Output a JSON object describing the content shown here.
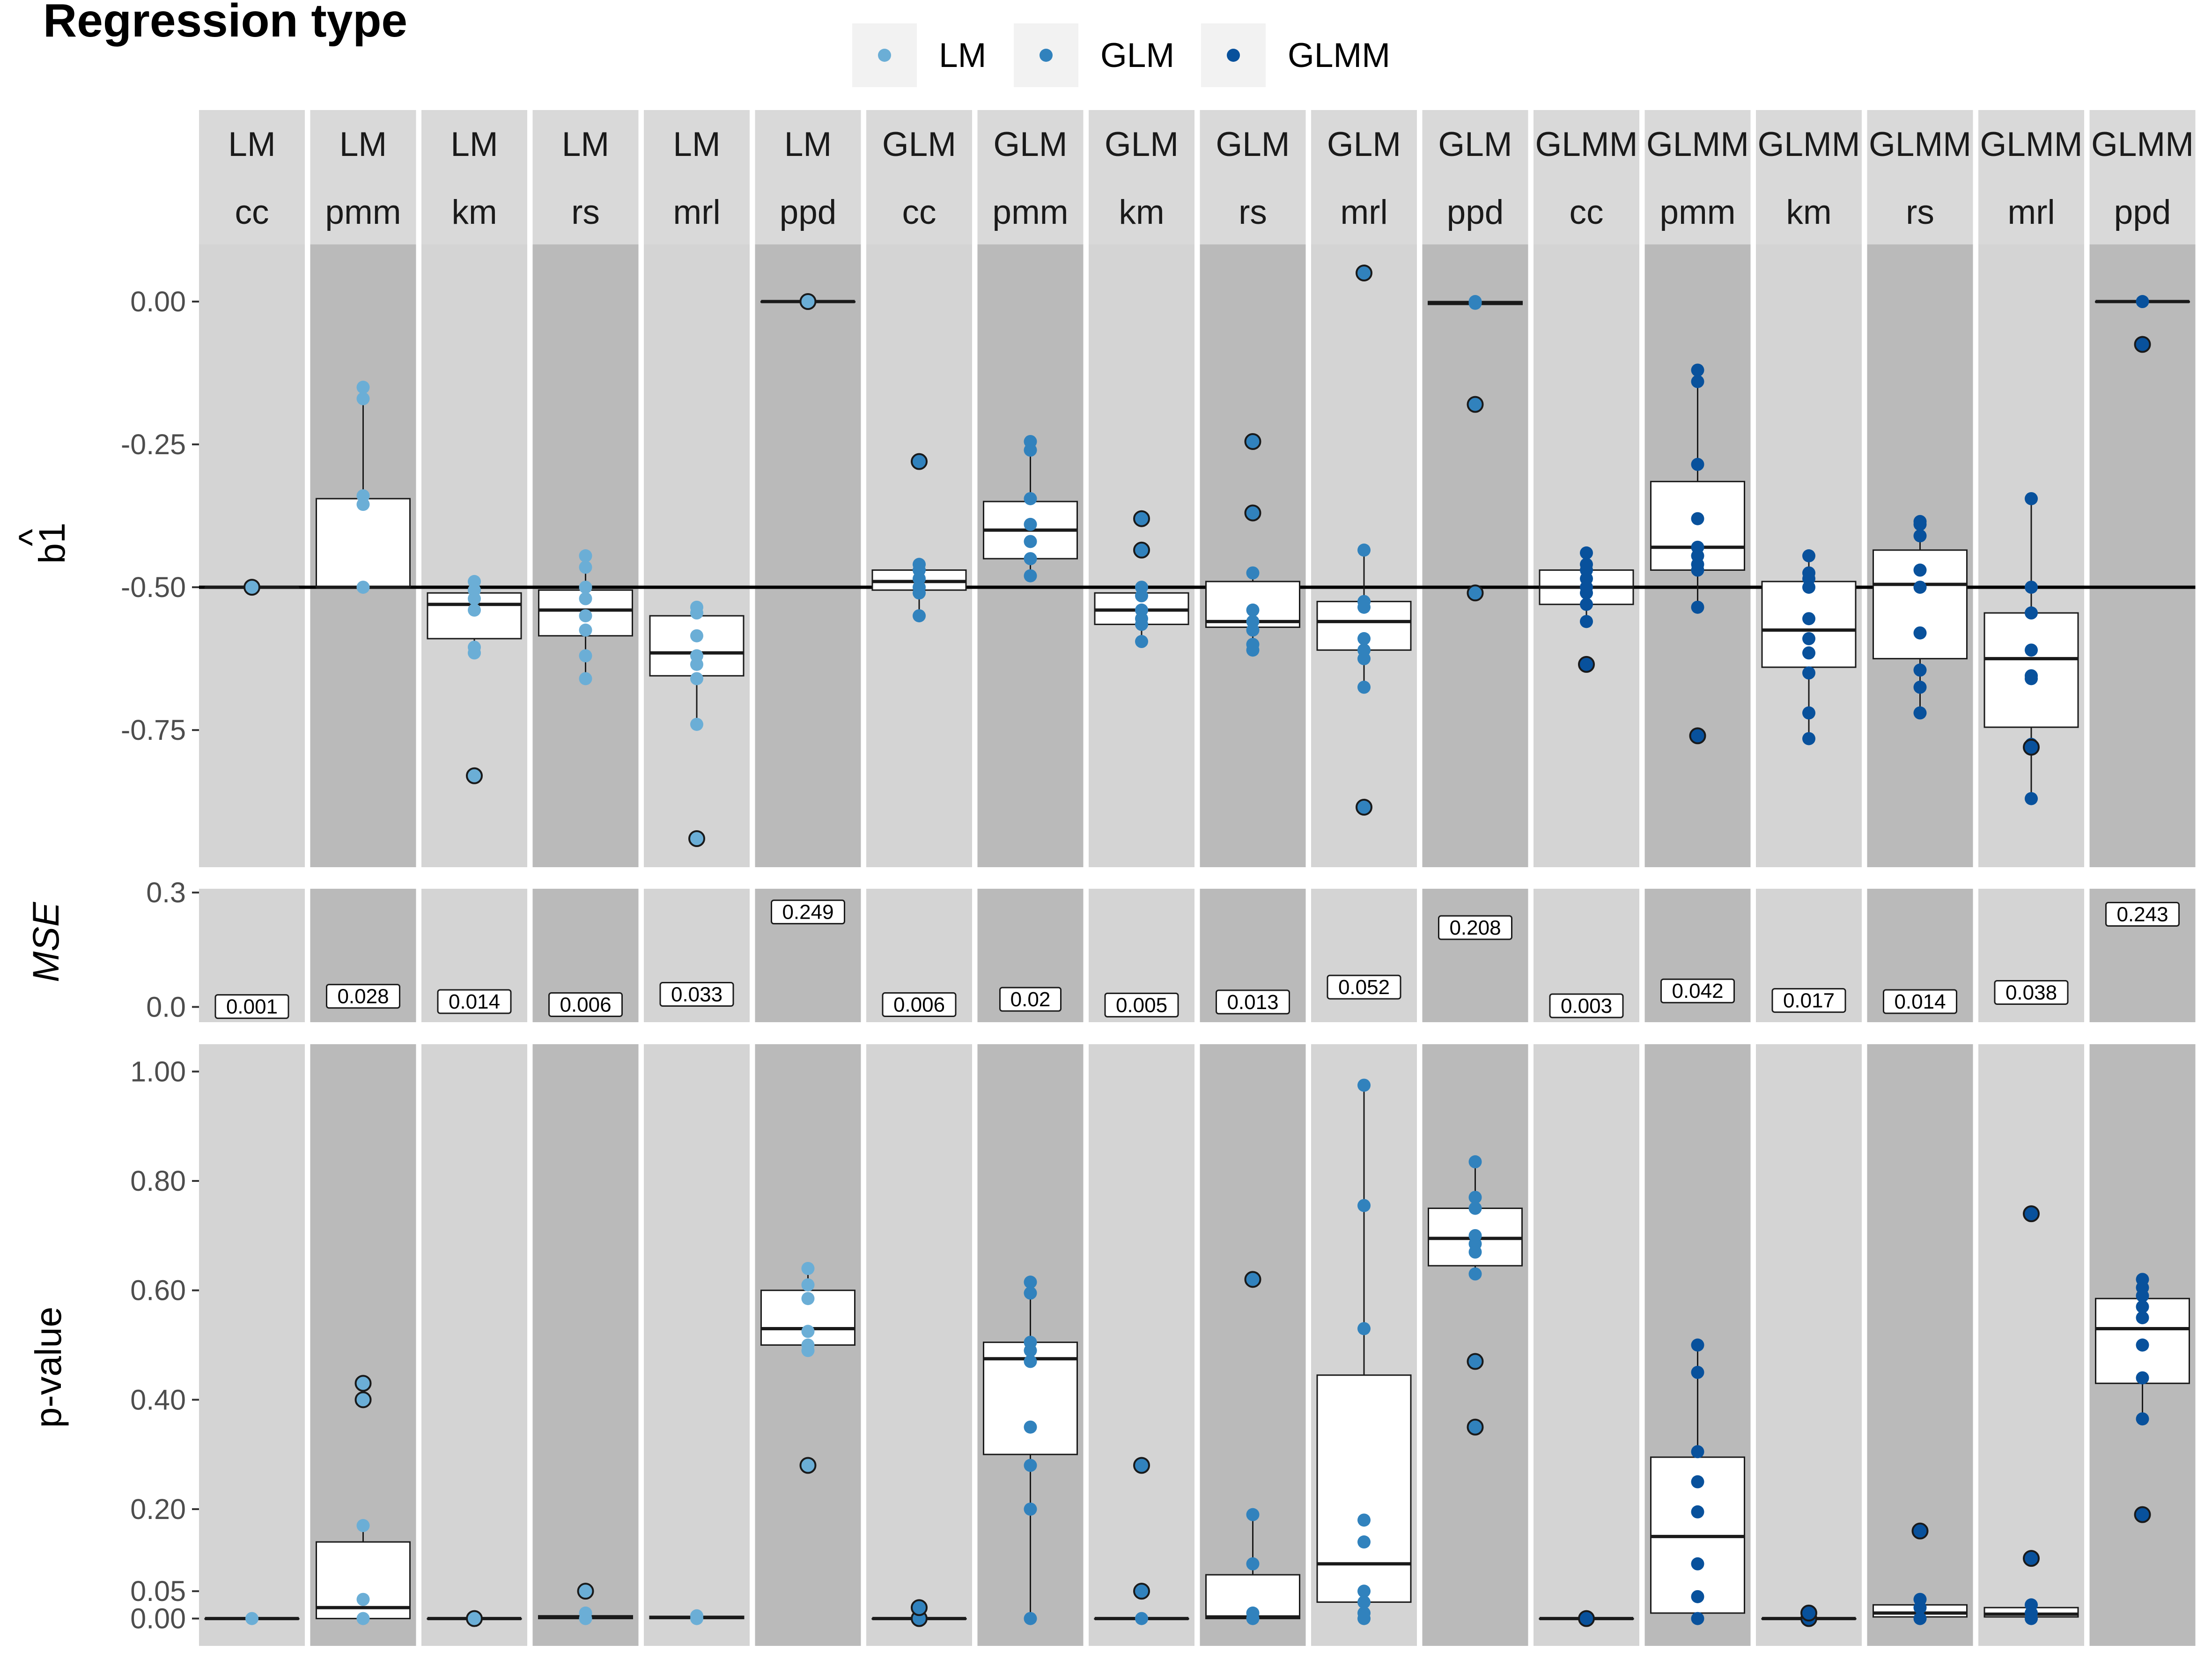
{
  "legend": {
    "title": "Regression type",
    "items": [
      {
        "label": "LM",
        "color": "#6BAED6"
      },
      {
        "label": "GLM",
        "color": "#3182BD"
      },
      {
        "label": "GLMM",
        "color": "#08519C"
      }
    ]
  },
  "colors": {
    "panel_light": "#d4d4d4",
    "panel_dark": "#bababa",
    "strip": "#d9d9d9",
    "box_fill": "#ffffff",
    "outline": "#1a1a1a"
  },
  "facets": [
    {
      "model": "LM",
      "method": "cc"
    },
    {
      "model": "LM",
      "method": "pmm"
    },
    {
      "model": "LM",
      "method": "km"
    },
    {
      "model": "LM",
      "method": "rs"
    },
    {
      "model": "LM",
      "method": "mrl"
    },
    {
      "model": "LM",
      "method": "ppd"
    },
    {
      "model": "GLM",
      "method": "cc"
    },
    {
      "model": "GLM",
      "method": "pmm"
    },
    {
      "model": "GLM",
      "method": "km"
    },
    {
      "model": "GLM",
      "method": "rs"
    },
    {
      "model": "GLM",
      "method": "mrl"
    },
    {
      "model": "GLM",
      "method": "ppd"
    },
    {
      "model": "GLMM",
      "method": "cc"
    },
    {
      "model": "GLMM",
      "method": "pmm"
    },
    {
      "model": "GLMM",
      "method": "km"
    },
    {
      "model": "GLMM",
      "method": "rs"
    },
    {
      "model": "GLMM",
      "method": "mrl"
    },
    {
      "model": "GLMM",
      "method": "ppd"
    }
  ],
  "chart_data": [
    {
      "type": "box",
      "ylabel": "b1",
      "ylabel_accent": "^",
      "ylim": [
        -0.99,
        0.1
      ],
      "yticks": [
        0.0,
        -0.25,
        -0.5,
        -0.75
      ],
      "ytick_labels": [
        "0.00",
        "-0.25",
        "-0.50",
        "-0.75"
      ],
      "reference_line": -0.5,
      "boxes": [
        {
          "q1": -0.5,
          "median": -0.5,
          "q3": -0.5,
          "whisker_low": -0.5,
          "whisker_high": -0.5
        },
        {
          "q1": -0.5,
          "median": -0.5,
          "q3": -0.345,
          "whisker_low": -0.5,
          "whisker_high": -0.15
        },
        {
          "q1": -0.59,
          "median": -0.53,
          "q3": -0.51,
          "whisker_low": -0.62,
          "whisker_high": -0.49
        },
        {
          "q1": -0.585,
          "median": -0.54,
          "q3": -0.505,
          "whisker_low": -0.66,
          "whisker_high": -0.445
        },
        {
          "q1": -0.655,
          "median": -0.615,
          "q3": -0.55,
          "whisker_low": -0.74,
          "whisker_high": -0.535
        },
        {
          "q1": 0.0,
          "median": 0.0,
          "q3": 0.0,
          "whisker_low": 0.0,
          "whisker_high": 0.0
        },
        {
          "q1": -0.505,
          "median": -0.49,
          "q3": -0.47,
          "whisker_low": -0.55,
          "whisker_high": -0.46
        },
        {
          "q1": -0.45,
          "median": -0.4,
          "q3": -0.35,
          "whisker_low": -0.48,
          "whisker_high": -0.245
        },
        {
          "q1": -0.565,
          "median": -0.54,
          "q3": -0.51,
          "whisker_low": -0.595,
          "whisker_high": -0.5
        },
        {
          "q1": -0.57,
          "median": -0.56,
          "q3": -0.49,
          "whisker_low": -0.61,
          "whisker_high": -0.475
        },
        {
          "q1": -0.61,
          "median": -0.56,
          "q3": -0.525,
          "whisker_low": -0.675,
          "whisker_high": -0.435
        },
        {
          "q1": -0.005,
          "median": -0.003,
          "q3": 0.0,
          "whisker_low": -0.005,
          "whisker_high": 0.0
        },
        {
          "q1": -0.53,
          "median": -0.5,
          "q3": -0.47,
          "whisker_low": -0.56,
          "whisker_high": -0.44
        },
        {
          "q1": -0.47,
          "median": -0.43,
          "q3": -0.315,
          "whisker_low": -0.535,
          "whisker_high": -0.12
        },
        {
          "q1": -0.64,
          "median": -0.575,
          "q3": -0.49,
          "whisker_low": -0.765,
          "whisker_high": -0.445
        },
        {
          "q1": -0.625,
          "median": -0.495,
          "q3": -0.435,
          "whisker_low": -0.72,
          "whisker_high": -0.385
        },
        {
          "q1": -0.745,
          "median": -0.625,
          "q3": -0.545,
          "whisker_low": -0.87,
          "whisker_high": -0.345
        },
        {
          "q1": 0.0,
          "median": 0.0,
          "q3": 0.0,
          "whisker_low": 0.0,
          "whisker_high": 0.0
        }
      ],
      "points": [
        [
          -0.5
        ],
        [
          -0.15,
          -0.17,
          -0.34,
          -0.355,
          -0.5
        ],
        [
          -0.49,
          -0.505,
          -0.52,
          -0.54,
          -0.605,
          -0.615
        ],
        [
          -0.445,
          -0.465,
          -0.5,
          -0.52,
          -0.55,
          -0.575,
          -0.62,
          -0.66
        ],
        [
          -0.535,
          -0.545,
          -0.585,
          -0.62,
          -0.635,
          -0.66,
          -0.74
        ],
        [
          0.0
        ],
        [
          -0.46,
          -0.47,
          -0.485,
          -0.5,
          -0.51,
          -0.55
        ],
        [
          -0.245,
          -0.26,
          -0.345,
          -0.39,
          -0.42,
          -0.45,
          -0.48
        ],
        [
          -0.5,
          -0.515,
          -0.54,
          -0.555,
          -0.565,
          -0.595
        ],
        [
          -0.475,
          -0.54,
          -0.56,
          -0.575,
          -0.6,
          -0.61
        ],
        [
          -0.435,
          -0.525,
          -0.535,
          -0.59,
          -0.61,
          -0.625,
          -0.675
        ],
        [
          -0.003,
          0.0
        ],
        [
          -0.44,
          -0.46,
          -0.47,
          -0.485,
          -0.5,
          -0.51,
          -0.53,
          -0.56
        ],
        [
          -0.12,
          -0.14,
          -0.285,
          -0.38,
          -0.43,
          -0.445,
          -0.46,
          -0.47,
          -0.535
        ],
        [
          -0.445,
          -0.475,
          -0.485,
          -0.5,
          -0.555,
          -0.59,
          -0.615,
          -0.65,
          -0.72,
          -0.765
        ],
        [
          -0.385,
          -0.39,
          -0.41,
          -0.47,
          -0.5,
          -0.58,
          -0.645,
          -0.675,
          -0.72
        ],
        [
          -0.345,
          -0.5,
          -0.545,
          -0.61,
          -0.655,
          -0.66,
          -0.775,
          -0.87
        ],
        [
          0.0
        ]
      ],
      "outliers": [
        [
          -0.5
        ],
        [],
        [
          -0.83
        ],
        [],
        [
          -0.94
        ],
        [
          0.0
        ],
        [
          -0.28
        ],
        [],
        [
          -0.38,
          -0.435
        ],
        [
          -0.245,
          -0.37
        ],
        [
          0.05,
          -0.885
        ],
        [
          -0.18,
          -0.51
        ],
        [
          -0.635
        ],
        [
          -0.76
        ],
        [],
        [],
        [
          -0.78
        ],
        [
          -0.075
        ]
      ]
    },
    {
      "type": "bar",
      "ylabel": "MSE",
      "ylim": [
        -0.04,
        0.31
      ],
      "yticks": [
        0.0,
        0.3
      ],
      "ytick_labels": [
        "0.0",
        "0.3"
      ],
      "values": [
        0.001,
        0.028,
        0.014,
        0.006,
        0.033,
        0.249,
        0.006,
        0.02,
        0.005,
        0.013,
        0.052,
        0.208,
        0.003,
        0.042,
        0.017,
        0.014,
        0.038,
        0.243
      ],
      "value_labels": [
        "0.001",
        "0.028",
        "0.014",
        "0.006",
        "0.033",
        "0.249",
        "0.006",
        "0.02",
        "0.005",
        "0.013",
        "0.052",
        "0.208",
        "0.003",
        "0.042",
        "0.017",
        "0.014",
        "0.038",
        "0.243"
      ]
    },
    {
      "type": "box",
      "ylabel": "p-value",
      "ylim": [
        -0.05,
        1.05
      ],
      "yticks": [
        1.0,
        0.8,
        0.6,
        0.4,
        0.2,
        0.05,
        0.0
      ],
      "ytick_labels": [
        "1.00",
        "0.80",
        "0.60",
        "0.40",
        "0.20",
        "0.05",
        "0.00"
      ],
      "boxes": [
        {
          "q1": 0.0,
          "median": 0.0,
          "q3": 0.0,
          "whisker_low": 0.0,
          "whisker_high": 0.0
        },
        {
          "q1": 0.0,
          "median": 0.02,
          "q3": 0.14,
          "whisker_low": 0.0,
          "whisker_high": 0.17
        },
        {
          "q1": 0.0,
          "median": 0.0,
          "q3": 0.0,
          "whisker_low": 0.0,
          "whisker_high": 0.0
        },
        {
          "q1": 0.0,
          "median": 0.003,
          "q3": 0.005,
          "whisker_low": 0.0,
          "whisker_high": 0.01
        },
        {
          "q1": 0.0,
          "median": 0.002,
          "q3": 0.004,
          "whisker_low": 0.0,
          "whisker_high": 0.005
        },
        {
          "q1": 0.5,
          "median": 0.53,
          "q3": 0.6,
          "whisker_low": 0.49,
          "whisker_high": 0.64
        },
        {
          "q1": 0.0,
          "median": 0.0,
          "q3": 0.0,
          "whisker_low": 0.0,
          "whisker_high": 0.0
        },
        {
          "q1": 0.3,
          "median": 0.475,
          "q3": 0.505,
          "whisker_low": 0.0,
          "whisker_high": 0.615
        },
        {
          "q1": 0.0,
          "median": 0.0,
          "q3": 0.0,
          "whisker_low": 0.0,
          "whisker_high": 0.0
        },
        {
          "q1": 0.0,
          "median": 0.003,
          "q3": 0.08,
          "whisker_low": 0.0,
          "whisker_high": 0.19
        },
        {
          "q1": 0.03,
          "median": 0.1,
          "q3": 0.445,
          "whisker_low": 0.0,
          "whisker_high": 0.975
        },
        {
          "q1": 0.645,
          "median": 0.695,
          "q3": 0.75,
          "whisker_low": 0.63,
          "whisker_high": 0.835
        },
        {
          "q1": 0.0,
          "median": 0.0,
          "q3": 0.0,
          "whisker_low": 0.0,
          "whisker_high": 0.0
        },
        {
          "q1": 0.01,
          "median": 0.15,
          "q3": 0.295,
          "whisker_low": 0.0,
          "whisker_high": 0.5
        },
        {
          "q1": 0.0,
          "median": 0.0,
          "q3": 0.0,
          "whisker_low": 0.0,
          "whisker_high": 0.0
        },
        {
          "q1": 0.003,
          "median": 0.01,
          "q3": 0.025,
          "whisker_low": 0.0,
          "whisker_high": 0.035
        },
        {
          "q1": 0.003,
          "median": 0.008,
          "q3": 0.02,
          "whisker_low": 0.0,
          "whisker_high": 0.025
        },
        {
          "q1": 0.43,
          "median": 0.53,
          "q3": 0.585,
          "whisker_low": 0.365,
          "whisker_high": 0.62
        }
      ],
      "points": [
        [
          0.0
        ],
        [
          0.0,
          0.035,
          0.17
        ],
        [
          0.0
        ],
        [
          0.0,
          0.01
        ],
        [
          0.0,
          0.005
        ],
        [
          0.49,
          0.5,
          0.525,
          0.585,
          0.61,
          0.64
        ],
        [
          0.0
        ],
        [
          0.0,
          0.2,
          0.28,
          0.35,
          0.47,
          0.49,
          0.505,
          0.595,
          0.615
        ],
        [
          0.0
        ],
        [
          0.0,
          0.01,
          0.1,
          0.19
        ],
        [
          0.0,
          0.01,
          0.03,
          0.05,
          0.14,
          0.18,
          0.53,
          0.755,
          0.975
        ],
        [
          0.63,
          0.67,
          0.685,
          0.7,
          0.75,
          0.77,
          0.835
        ],
        [
          0.0
        ],
        [
          0.0,
          0.04,
          0.1,
          0.195,
          0.25,
          0.305,
          0.45,
          0.5
        ],
        [
          0.0,
          0.005
        ],
        [
          0.0,
          0.02,
          0.035
        ],
        [
          0.0,
          0.01,
          0.025
        ],
        [
          0.365,
          0.44,
          0.5,
          0.55,
          0.57,
          0.59,
          0.605,
          0.62
        ]
      ],
      "outliers": [
        [],
        [
          0.4,
          0.43
        ],
        [
          0.0
        ],
        [
          0.05
        ],
        [],
        [
          0.28
        ],
        [
          0.0,
          0.02
        ],
        [],
        [
          0.05,
          0.28
        ],
        [
          0.62
        ],
        [],
        [
          0.35,
          0.47
        ],
        [
          0.0
        ],
        [],
        [
          0.0,
          0.01
        ],
        [
          0.16
        ],
        [
          0.11,
          0.74
        ],
        [
          0.19
        ]
      ]
    }
  ]
}
